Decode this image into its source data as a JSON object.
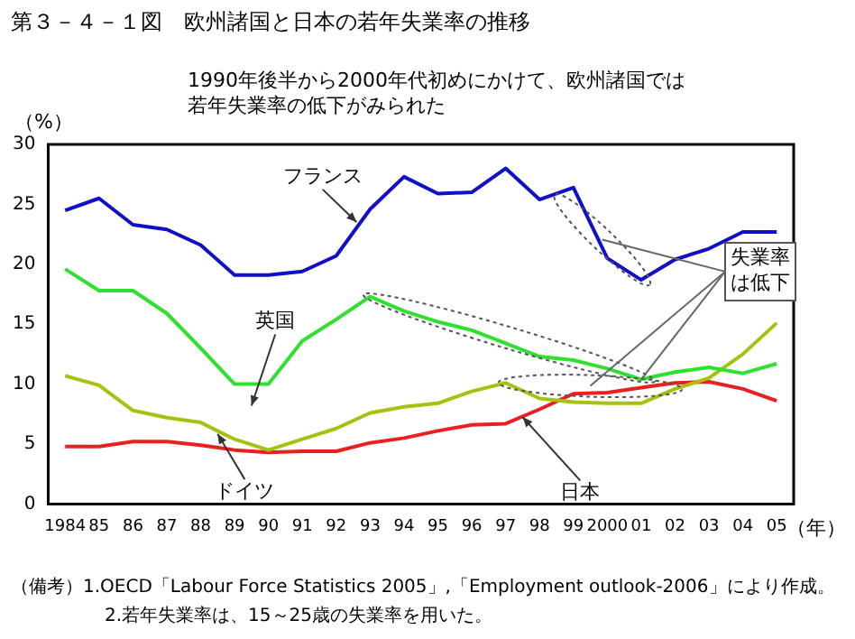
{
  "chart_data": {
    "type": "line",
    "title": "第３－４－１図　欧州諸国と日本の若年失業率の推移",
    "subtitle": "1990年後半から2000年代初めにかけて、欧州諸国では若年失業率の低下がみられた",
    "ylabel": "（%）",
    "xlabel": "（年）",
    "categories": [
      "1984",
      "85",
      "86",
      "87",
      "88",
      "89",
      "90",
      "91",
      "92",
      "93",
      "94",
      "95",
      "96",
      "97",
      "98",
      "99",
      "2000",
      "01",
      "02",
      "03",
      "04",
      "05"
    ],
    "series": [
      {
        "name": "フランス",
        "color": "#1010c8",
        "values": [
          24.5,
          25.5,
          23.3,
          22.9,
          21.6,
          19.1,
          19.1,
          19.4,
          20.7,
          24.6,
          27.3,
          25.9,
          26.0,
          28.0,
          25.4,
          26.4,
          20.5,
          18.7,
          20.4,
          21.3,
          22.7,
          22.7
        ]
      },
      {
        "name": "英国",
        "color": "#30e030",
        "values": [
          19.6,
          17.8,
          17.8,
          15.9,
          13.0,
          10.0,
          10.0,
          13.6,
          15.4,
          17.3,
          16.1,
          15.2,
          14.5,
          13.4,
          12.3,
          12.0,
          11.3,
          10.4,
          11.0,
          11.4,
          10.9,
          11.7
        ]
      },
      {
        "name": "ドイツ",
        "color": "#a8c010",
        "values": [
          10.7,
          9.9,
          7.8,
          7.2,
          6.8,
          5.4,
          4.5,
          5.4,
          6.3,
          7.6,
          8.1,
          8.4,
          9.4,
          10.1,
          8.8,
          8.5,
          8.4,
          8.4,
          9.6,
          10.5,
          12.5,
          15.1
        ]
      },
      {
        "name": "日本",
        "color": "#e82020",
        "values": [
          4.8,
          4.8,
          5.2,
          5.2,
          4.9,
          4.5,
          4.3,
          4.4,
          4.4,
          5.1,
          5.5,
          6.1,
          6.6,
          6.7,
          7.9,
          9.2,
          9.3,
          9.7,
          10.1,
          10.2,
          9.6,
          8.6
        ]
      }
    ],
    "ylim": [
      0,
      30
    ],
    "yticks": [
      0,
      5,
      10,
      15,
      20,
      25,
      30
    ],
    "grid": false,
    "legend": false,
    "marker": "none",
    "line_style": "solid",
    "annotations": [
      {
        "text": "失業率は低下",
        "x": "01",
        "y": 10.4
      },
      "（備考）1.OECD「Labour Force Statistics 2005」,「Employment outlook-2006」により作成。",
      "2.若年失業率は、15～25歳の失業率を用いた。"
    ]
  }
}
